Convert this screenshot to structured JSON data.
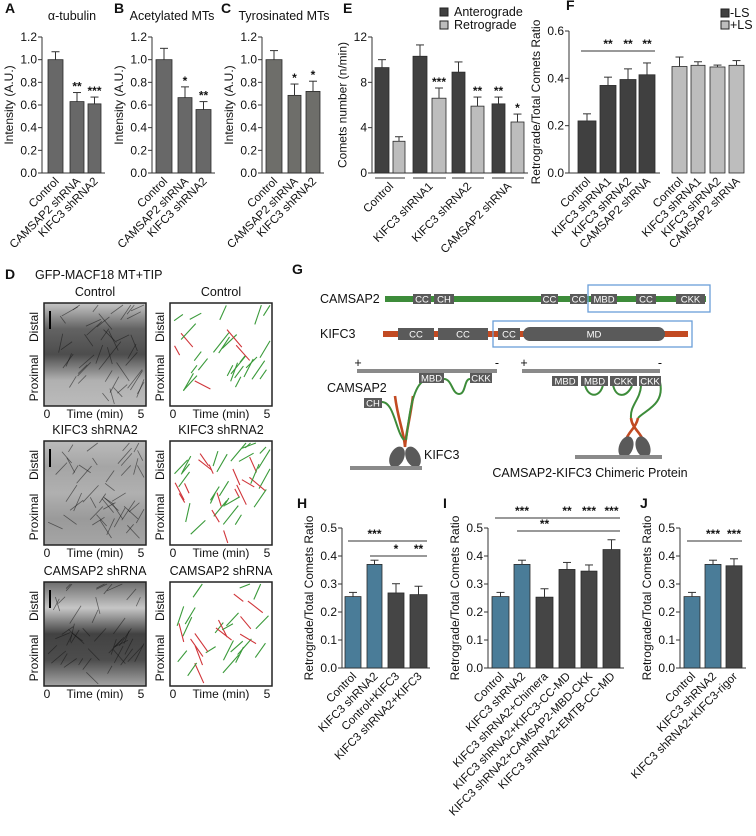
{
  "panel_letters": [
    "A",
    "B",
    "C",
    "D",
    "E",
    "F",
    "G",
    "H",
    "I",
    "J"
  ],
  "panel_d": {
    "title": "GFP-MACF18 MT+TIP",
    "rows": [
      "Control",
      "KIFC3 shRNA2",
      "CAMSAP2 shRNA"
    ],
    "axis_top": "Distal",
    "axis_bottom": "Proximal",
    "time_start": "0",
    "time_label": "Time (min)",
    "time_end": "5",
    "colors": {
      "anterograde": "#3a9a3a",
      "retrograde": "#d0353a"
    }
  },
  "panel_g": {
    "camsap2_label": "CAMSAP2",
    "camsap2_domains": [
      "CC",
      "CH",
      "CC",
      "CC",
      "MBD",
      "CC",
      "CKK"
    ],
    "kifc3_label": "KIFC3",
    "kifc3_domains": [
      "CC",
      "CC",
      "CC",
      "MD"
    ],
    "model_left": {
      "plus": "+",
      "minus": "-",
      "camsap2": "CAMSAP2",
      "ch": "CH",
      "mbd": "MBD",
      "ckk": "CKK",
      "kifc3": "KIFC3"
    },
    "model_right": {
      "plus": "+",
      "minus": "-",
      "domains": [
        "MBD",
        "MBD",
        "CKK",
        "CKK"
      ],
      "caption": "CAMSAP2-KIFC3 Chimeric Protein"
    },
    "colors": {
      "camsap2": "#3d8c3a",
      "kifc3": "#c24a22",
      "domain": "#5a5a5a",
      "highlight": "#6a9fd8",
      "microtubule": "#8a8a8a"
    }
  },
  "chart_data": [
    {
      "panel": "A",
      "type": "bar",
      "title": "α-tubulin",
      "ylabel": "Intensity (A.U.)",
      "ylim": [
        0,
        1.2
      ],
      "yticks": [
        "0.0",
        "0.2",
        "0.4",
        "0.6",
        "0.8",
        "1.0",
        "1.2"
      ],
      "categories": [
        "Control",
        "CAMSAP2 shRNA",
        "KIFC3 shRNA2"
      ],
      "series": [
        {
          "values": [
            1.0,
            0.63,
            0.61
          ],
          "errors": [
            0.07,
            0.08,
            0.06
          ],
          "stars": [
            "",
            "**",
            "***"
          ],
          "color": "#686868"
        }
      ]
    },
    {
      "panel": "B",
      "type": "bar",
      "title": "Acetylated MTs",
      "ylabel": "Intensity (A.U.)",
      "ylim": [
        0,
        1.2
      ],
      "yticks": [
        "0.0",
        "0.2",
        "0.4",
        "0.6",
        "0.8",
        "1.0",
        "1.2"
      ],
      "categories": [
        "Control",
        "CAMSAP2 shRNA",
        "KIFC3 shRNA2"
      ],
      "series": [
        {
          "values": [
            1.0,
            0.665,
            0.56
          ],
          "errors": [
            0.1,
            0.095,
            0.07
          ],
          "stars": [
            "",
            "*",
            "**"
          ],
          "color": "#686868"
        }
      ]
    },
    {
      "panel": "C",
      "type": "bar",
      "title": "Tyrosinated MTs",
      "ylabel": "Intensity (A.U.)",
      "ylim": [
        0,
        1.2
      ],
      "yticks": [
        "0.0",
        "0.2",
        "0.4",
        "0.6",
        "0.8",
        "1.0",
        "1.2"
      ],
      "categories": [
        "Control",
        "CAMSAP2 shRNA",
        "KIFC3 shRNA2"
      ],
      "series": [
        {
          "values": [
            1.0,
            0.685,
            0.72
          ],
          "errors": [
            0.08,
            0.1,
            0.09
          ],
          "stars": [
            "",
            "*",
            "*"
          ],
          "color": "#6e6e6a"
        }
      ]
    },
    {
      "panel": "E",
      "type": "bar",
      "title": "",
      "ylabel": "Comets number (n/min)",
      "ylim": [
        0,
        12
      ],
      "yticks": [
        "0",
        "4",
        "8",
        "12"
      ],
      "categories": [
        "Control",
        "KIFC3 shRNA1",
        "KIFC3 shRNA2",
        "CAMSAP2 shRNA"
      ],
      "legend": "top-right",
      "series": [
        {
          "name": "Anterograde",
          "values": [
            9.3,
            10.3,
            8.9,
            6.1
          ],
          "errors": [
            0.7,
            1.0,
            0.9,
            0.6
          ],
          "stars": [
            "",
            "",
            "",
            "**"
          ],
          "color": "#404040"
        },
        {
          "name": "Retrograde",
          "values": [
            2.8,
            6.6,
            5.9,
            4.5
          ],
          "errors": [
            0.4,
            0.9,
            0.8,
            0.7
          ],
          "stars": [
            "",
            "***",
            "**",
            "*"
          ],
          "color": "#bdbdbd"
        }
      ]
    },
    {
      "panel": "F",
      "type": "bar",
      "title": "",
      "ylabel": "Retrograde/Total Comets Ratio",
      "ylim": [
        0,
        0.6
      ],
      "yticks": [
        "0.0",
        "0.2",
        "0.4",
        "0.6"
      ],
      "categories": [
        "Control",
        "KIFC3 shRNA1",
        "KIFC3 shRNA2",
        "CAMSAP2 shRNA"
      ],
      "legend": "top-right",
      "series": [
        {
          "name": "-LS",
          "values": [
            0.22,
            0.37,
            0.395,
            0.415
          ],
          "errors": [
            0.03,
            0.035,
            0.045,
            0.05
          ],
          "color": "#404040"
        },
        {
          "name": "+LS",
          "values": [
            0.45,
            0.455,
            0.448,
            0.455
          ],
          "errors": [
            0.04,
            0.015,
            0.008,
            0.02
          ],
          "color": "#bdbdbd"
        }
      ],
      "brackets": [
        {
          "from": 0,
          "to": 3,
          "marks": [
            {
              "bar": 1,
              "text": "**"
            },
            {
              "bar": 2,
              "text": "**"
            },
            {
              "bar": 3,
              "text": "**"
            }
          ]
        }
      ]
    },
    {
      "panel": "H",
      "type": "bar",
      "title": "",
      "ylabel": "Retrograde/Total Comets Ratio",
      "ylim": [
        0,
        0.5
      ],
      "yticks": [
        "0.0",
        "0.1",
        "0.2",
        "0.3",
        "0.4",
        "0.5"
      ],
      "categories": [
        "Control",
        "KIFC3 shRNA2",
        "Control+KIFC3",
        "KIFC3 shRNA2+KIFC3"
      ],
      "series": [
        {
          "values": [
            0.255,
            0.37,
            0.268,
            0.262
          ],
          "errors": [
            0.015,
            0.015,
            0.033,
            0.03
          ],
          "bar_colors": [
            "#4a7c98",
            "#4a7c98",
            "#454545",
            "#454545"
          ]
        }
      ],
      "brackets": [
        {
          "from": 0,
          "to": 3,
          "marks": [
            {
              "bar": 1,
              "text": "***"
            }
          ]
        },
        {
          "from": 1,
          "to": 3,
          "marks": [
            {
              "bar": 2,
              "text": "*"
            },
            {
              "bar": 3,
              "text": "**"
            }
          ]
        }
      ]
    },
    {
      "panel": "I",
      "type": "bar",
      "title": "",
      "ylabel": "Retrograde/Total Comets Ratio",
      "ylim": [
        0,
        0.5
      ],
      "yticks": [
        "0.0",
        "0.1",
        "0.2",
        "0.3",
        "0.4",
        "0.5"
      ],
      "categories": [
        "Control",
        "KIFC3 shRNA2",
        "KIFC3 shRNA2+Chimera",
        "KIFC3 shRNA2+KIFC3-CC-MD",
        "KIFC3 shRNA2+CAMSAP2-MBD-CKK",
        "KIFC3 shRNA2+EMTB-CC-MD"
      ],
      "series": [
        {
          "values": [
            0.255,
            0.37,
            0.253,
            0.352,
            0.346,
            0.423
          ],
          "errors": [
            0.015,
            0.015,
            0.03,
            0.025,
            0.022,
            0.035
          ],
          "bar_colors": [
            "#4a7c98",
            "#4a7c98",
            "#454545",
            "#454545",
            "#454545",
            "#454545"
          ]
        }
      ],
      "brackets": [
        {
          "from": 0,
          "to": 5,
          "marks": [
            {
              "bar": 1,
              "text": "***"
            },
            {
              "bar": 3,
              "text": "**"
            },
            {
              "bar": 4,
              "text": "***"
            },
            {
              "bar": 5,
              "text": "***"
            }
          ]
        },
        {
          "from": 1,
          "to": 5,
          "marks": [
            {
              "bar": 2,
              "text": "**"
            }
          ]
        }
      ]
    },
    {
      "panel": "J",
      "type": "bar",
      "title": "",
      "ylabel": "Retrograde/Total Comets Ratio",
      "ylim": [
        0,
        0.5
      ],
      "yticks": [
        "0.0",
        "0.1",
        "0.2",
        "0.3",
        "0.4",
        "0.5"
      ],
      "categories": [
        "Control",
        "KIFC3 shRNA2",
        "KIFC3 shRNA2+KIFC3-rigor"
      ],
      "series": [
        {
          "values": [
            0.255,
            0.37,
            0.365
          ],
          "errors": [
            0.015,
            0.015,
            0.025
          ],
          "bar_colors": [
            "#4a7c98",
            "#4a7c98",
            "#454545"
          ]
        }
      ],
      "brackets": [
        {
          "from": 0,
          "to": 2,
          "marks": [
            {
              "bar": 1,
              "text": "***"
            },
            {
              "bar": 2,
              "text": "***"
            }
          ]
        }
      ]
    }
  ]
}
